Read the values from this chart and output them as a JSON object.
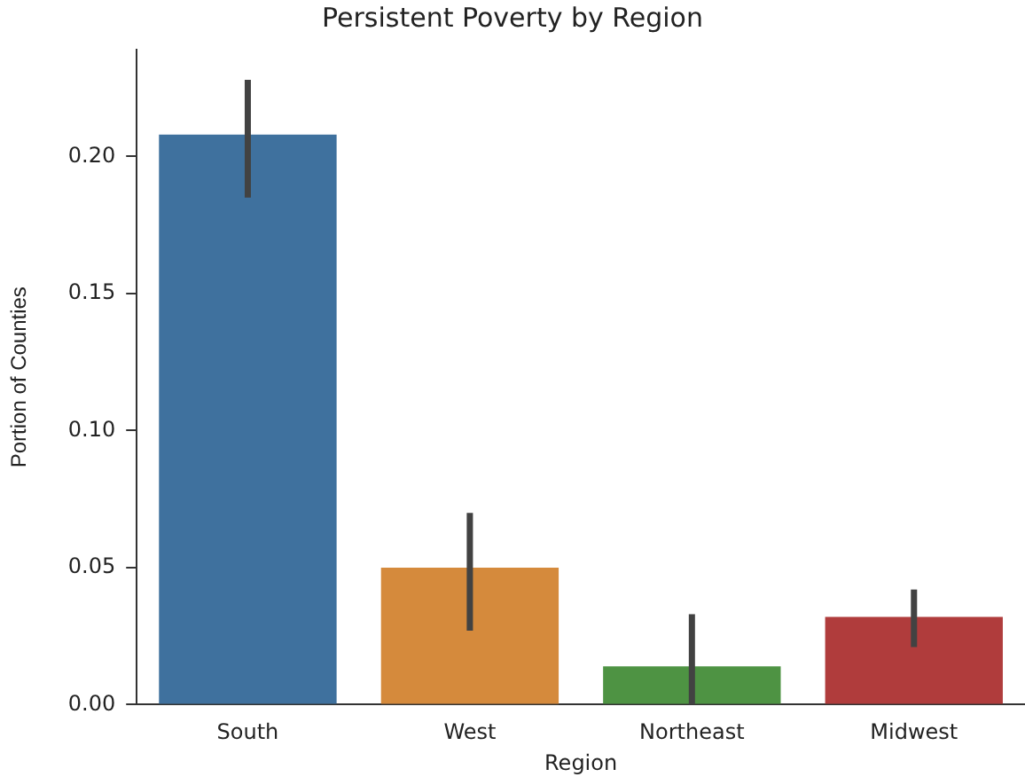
{
  "chart_data": {
    "type": "bar",
    "title": "Persistent Poverty by Region",
    "xlabel": "Region",
    "ylabel": "Portion of Counties",
    "categories": [
      "South",
      "West",
      "Northeast",
      "Midwest"
    ],
    "values": [
      0.208,
      0.05,
      0.014,
      0.032
    ],
    "colors": [
      "#3f719e",
      "#d58a3c",
      "#4e9343",
      "#b03c3c"
    ],
    "errors": [
      [
        0.185,
        0.228
      ],
      [
        0.027,
        0.07
      ],
      [
        0.0,
        0.033
      ],
      [
        0.021,
        0.042
      ]
    ],
    "ylim": [
      0,
      0.239
    ],
    "yticks": [
      {
        "value": 0,
        "label": "0.00"
      },
      {
        "value": 0.05,
        "label": "0.05"
      },
      {
        "value": 0.1,
        "label": "0.10"
      },
      {
        "value": 0.15,
        "label": "0.15"
      },
      {
        "value": 0.2,
        "label": "0.20"
      }
    ],
    "grid": false,
    "legend": false
  }
}
